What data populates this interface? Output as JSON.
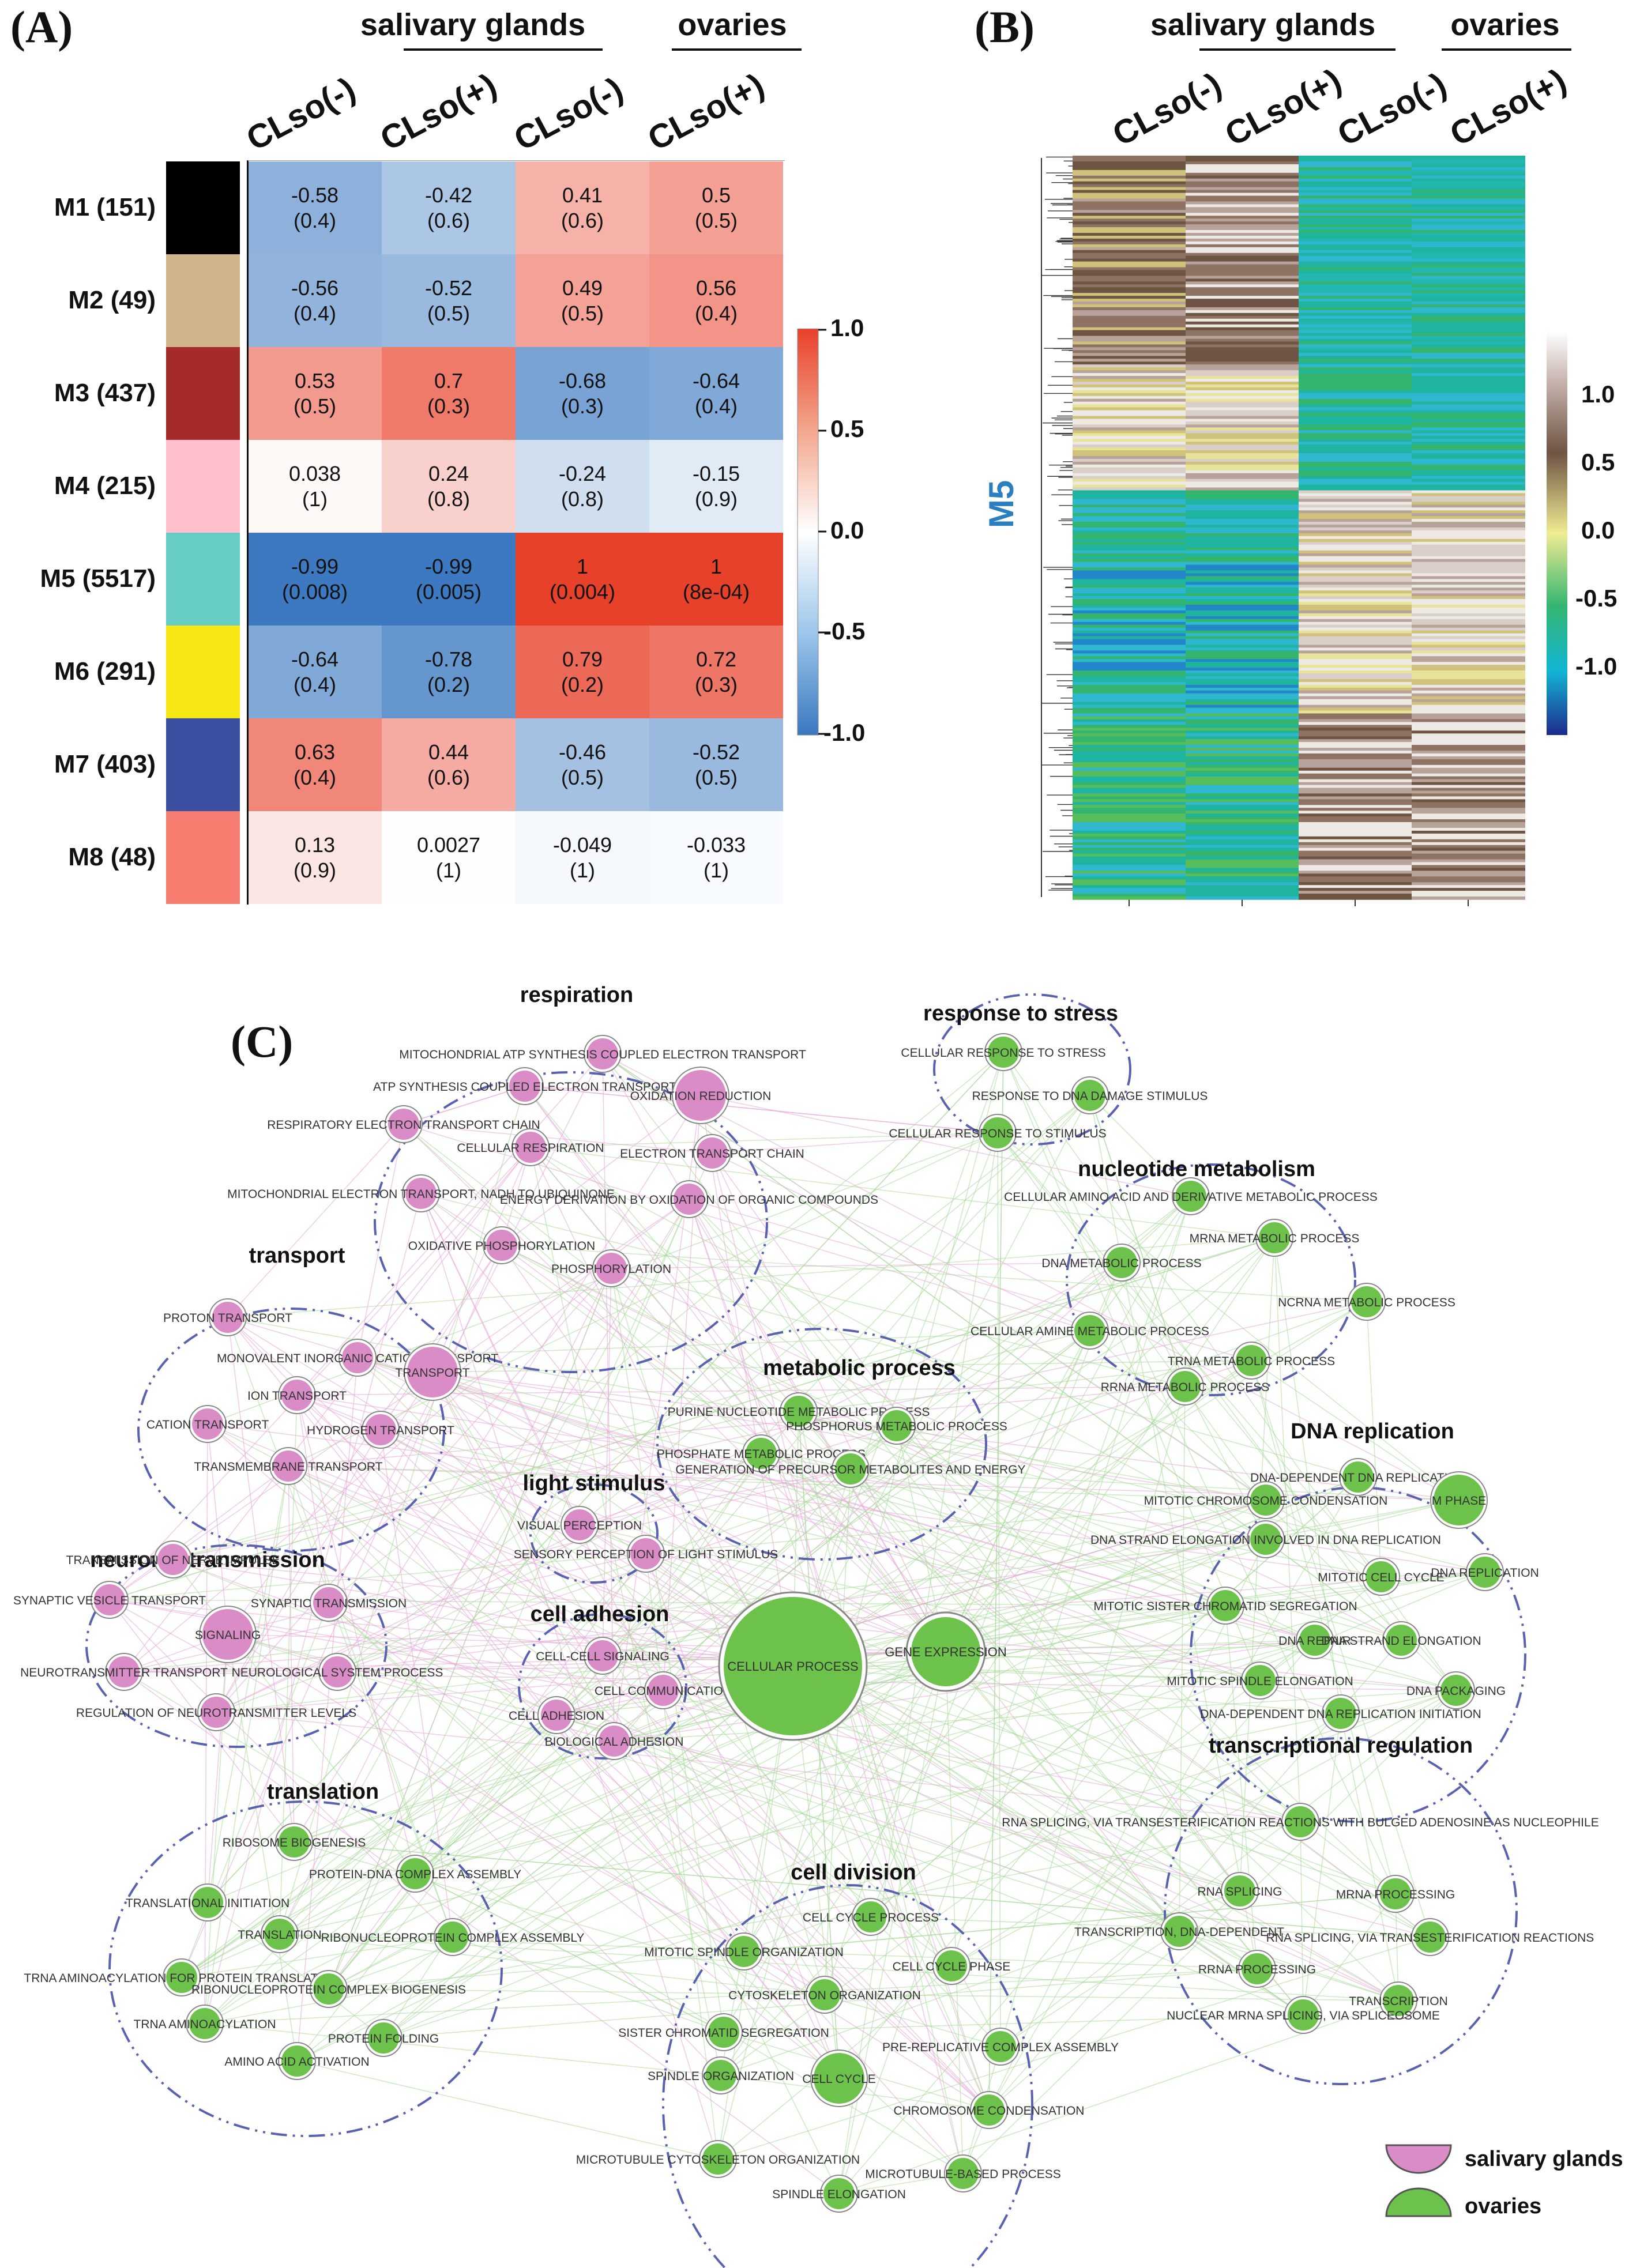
{
  "panel_a": {
    "label": "(A)",
    "group_headers": [
      "salivary glands",
      "ovaries"
    ],
    "columns": [
      "CLso(-)",
      "CLso(+)",
      "CLso(-)",
      "CLso(+)"
    ],
    "rows": [
      {
        "name": "M1 (151)",
        "color": "#000000",
        "cells": [
          [
            "-0.58",
            "(0.4)"
          ],
          [
            "-0.42",
            "(0.6)"
          ],
          [
            "0.41",
            "(0.6)"
          ],
          [
            "0.5",
            "(0.5)"
          ]
        ],
        "values": [
          -0.58,
          -0.42,
          0.41,
          0.5
        ]
      },
      {
        "name": "M2 (49)",
        "color": "#d2b48c",
        "cells": [
          [
            "-0.56",
            "(0.4)"
          ],
          [
            "-0.52",
            "(0.5)"
          ],
          [
            "0.49",
            "(0.5)"
          ],
          [
            "0.56",
            "(0.4)"
          ]
        ],
        "values": [
          -0.56,
          -0.52,
          0.49,
          0.56
        ]
      },
      {
        "name": "M3 (437)",
        "color": "#a52a2a",
        "cells": [
          [
            "0.53",
            "(0.5)"
          ],
          [
            "0.7",
            "(0.3)"
          ],
          [
            "-0.68",
            "(0.3)"
          ],
          [
            "-0.64",
            "(0.4)"
          ]
        ],
        "values": [
          0.53,
          0.7,
          -0.68,
          -0.64
        ]
      },
      {
        "name": "M4 (215)",
        "color": "#ffc0cb",
        "cells": [
          [
            "0.038",
            "(1)"
          ],
          [
            "0.24",
            "(0.8)"
          ],
          [
            "-0.24",
            "(0.8)"
          ],
          [
            "-0.15",
            "(0.9)"
          ]
        ],
        "values": [
          0.038,
          0.24,
          -0.24,
          -0.15
        ]
      },
      {
        "name": "M5 (5517)",
        "color": "#66ccc4",
        "cells": [
          [
            "-0.99",
            "(0.008)"
          ],
          [
            "-0.99",
            "(0.005)"
          ],
          [
            "1",
            "(0.004)"
          ],
          [
            "1",
            "(8e-04)"
          ]
        ],
        "values": [
          -0.99,
          -0.99,
          1,
          1
        ]
      },
      {
        "name": "M6 (291)",
        "color": "#f5e614",
        "cells": [
          [
            "-0.64",
            "(0.4)"
          ],
          [
            "-0.78",
            "(0.2)"
          ],
          [
            "0.79",
            "(0.2)"
          ],
          [
            "0.72",
            "(0.3)"
          ]
        ],
        "values": [
          -0.64,
          -0.78,
          0.79,
          0.72
        ]
      },
      {
        "name": "M7 (403)",
        "color": "#3a4fa0",
        "cells": [
          [
            "0.63",
            "(0.4)"
          ],
          [
            "0.44",
            "(0.6)"
          ],
          [
            "-0.46",
            "(0.5)"
          ],
          [
            "-0.52",
            "(0.5)"
          ]
        ],
        "values": [
          0.63,
          0.44,
          -0.46,
          -0.52
        ]
      },
      {
        "name": "M8 (48)",
        "color": "#f57c6e",
        "cells": [
          [
            "0.13",
            "(0.9)"
          ],
          [
            "0.0027",
            "(1)"
          ],
          [
            "-0.049",
            "(1)"
          ],
          [
            "-0.033",
            "(1)"
          ]
        ],
        "values": [
          0.13,
          0.0027,
          -0.049,
          -0.033
        ]
      }
    ],
    "colorbar_ticks": [
      "1.0",
      "0.5",
      "0.0",
      "-0.5",
      "-1.0"
    ]
  },
  "panel_b": {
    "label": "(B)",
    "group_headers": [
      "salivary glands",
      "ovaries"
    ],
    "columns": [
      "CLso(-)",
      "CLso(+)",
      "CLso(-)",
      "CLso(+)"
    ],
    "module_label": "M5",
    "colorbar_ticks": [
      "1.0",
      "0.5",
      "0.0",
      "-0.5",
      "-1.0"
    ]
  },
  "panel_c": {
    "label": "(C)",
    "legend": [
      "salivary glands",
      "ovaries"
    ],
    "clusters": [
      {
        "title": "respiration",
        "nodes": [
          "MITOCHONDRIAL ATP SYNTHESIS COUPLED ELECTRON TRANSPORT",
          "ATP SYNTHESIS COUPLED ELECTRON TRANSPORT",
          "OXIDATION REDUCTION",
          "RESPIRATORY ELECTRON TRANSPORT CHAIN",
          "CELLULAR RESPIRATION",
          "ELECTRON TRANSPORT CHAIN",
          "MITOCHONDRIAL ELECTRON TRANSPORT, NADH TO UBIQUINONE",
          "ENERGY DERIVATION BY OXIDATION OF ORGANIC COMPOUNDS",
          "OXIDATIVE PHOSPHORYLATION",
          "PHOSPHORYLATION"
        ]
      },
      {
        "title": "response to stress",
        "nodes": [
          "CELLULAR RESPONSE TO STRESS",
          "RESPONSE TO DNA DAMAGE STIMULUS",
          "CELLULAR RESPONSE TO STIMULUS"
        ]
      },
      {
        "title": "nucleotide metabolism",
        "nodes": [
          "CELLULAR AMINO ACID AND DERIVATIVE METABOLIC PROCESS",
          "MRNA METABOLIC PROCESS",
          "DNA METABOLIC PROCESS",
          "NCRNA METABOLIC PROCESS",
          "CELLULAR AMINE METABOLIC PROCESS",
          "TRNA METABOLIC PROCESS",
          "RRNA METABOLIC PROCESS"
        ]
      },
      {
        "title": "transport",
        "nodes": [
          "PROTON TRANSPORT",
          "MONOVALENT INORGANIC CATION TRANSPORT",
          "ION TRANSPORT",
          "TRANSPORT",
          "CATION TRANSPORT",
          "HYDROGEN TRANSPORT",
          "TRANSMEMBRANE TRANSPORT"
        ]
      },
      {
        "title": "metabolic process",
        "nodes": [
          "PURINE NUCLEOTIDE METABOLIC PROCESS",
          "PHOSPHORUS METABOLIC PROCESS",
          "PHOSPHATE METABOLIC PROCESS",
          "GENERATION OF PRECURSOR METABOLITES AND ENERGY"
        ]
      },
      {
        "title": "DNA replication",
        "nodes": [
          "DNA-DEPENDENT DNA REPLICATION",
          "MITOTIC CHROMOSOME CONDENSATION",
          "M PHASE",
          "DNA STRAND ELONGATION INVOLVED IN DNA REPLICATION",
          "MITOTIC CELL CYCLE",
          "DNA REPLICATION",
          "MITOTIC SISTER CHROMATID SEGREGATION",
          "DNA REPAIR",
          "DNA STRAND ELONGATION",
          "MITOTIC SPINDLE ELONGATION",
          "DNA PACKAGING",
          "DNA-DEPENDENT DNA REPLICATION INITIATION"
        ]
      },
      {
        "title": "light stimulus",
        "nodes": [
          "VISUAL PERCEPTION",
          "SENSORY PERCEPTION OF LIGHT STIMULUS"
        ]
      },
      {
        "title": "neuronal transmission",
        "nodes": [
          "TRANSMISSION OF NERVE IMPULSE",
          "SYNAPTIC VESICLE TRANSPORT",
          "SYNAPTIC TRANSMISSION",
          "SIGNALING",
          "NEUROTRANSMITTER TRANSPORT",
          "NEUROLOGICAL SYSTEM PROCESS",
          "REGULATION OF NEUROTRANSMITTER LEVELS"
        ]
      },
      {
        "title": "cell adhesion",
        "nodes": [
          "CELL-CELL SIGNALING",
          "CELL COMMUNICATION",
          "CELL ADHESION",
          "BIOLOGICAL ADHESION"
        ]
      },
      {
        "title": "translation",
        "nodes": [
          "RIBOSOME BIOGENESIS",
          "PROTEIN-DNA COMPLEX ASSEMBLY",
          "TRANSLATIONAL INITIATION",
          "TRANSLATION",
          "RIBONUCLEOPROTEIN COMPLEX ASSEMBLY",
          "TRNA AMINOACYLATION FOR PROTEIN TRANSLATION",
          "RIBONUCLEOPROTEIN COMPLEX BIOGENESIS",
          "TRNA AMINOACYLATION",
          "PROTEIN FOLDING",
          "AMINO ACID ACTIVATION"
        ]
      },
      {
        "title": "transcriptional regulation",
        "nodes": [
          "RNA SPLICING, VIA TRANSESTERIFICATION REACTIONS WITH BULGED ADENOSINE AS NUCLEOPHILE",
          "RNA SPLICING",
          "MRNA PROCESSING",
          "TRANSCRIPTION, DNA-DEPENDENT",
          "RNA SPLICING, VIA TRANSESTERIFICATION REACTIONS",
          "RRNA PROCESSING",
          "TRANSCRIPTION",
          "NUCLEAR MRNA SPLICING, VIA SPLICEOSOME"
        ]
      },
      {
        "title": "cell division",
        "nodes": [
          "CELL CYCLE PROCESS",
          "MITOTIC SPINDLE ORGANIZATION",
          "CELL CYCLE PHASE",
          "CYTOSKELETON ORGANIZATION",
          "SISTER CHROMATID SEGREGATION",
          "PRE-REPLICATIVE COMPLEX ASSEMBLY",
          "SPINDLE ORGANIZATION",
          "CELL CYCLE",
          "CHROMOSOME CONDENSATION",
          "MICROTUBULE CYTOSKELETON ORGANIZATION",
          "MICROTUBULE-BASED PROCESS",
          "SPINDLE ELONGATION"
        ]
      }
    ],
    "hubs": [
      "CELLULAR PROCESS",
      "GENE EXPRESSION"
    ]
  }
}
